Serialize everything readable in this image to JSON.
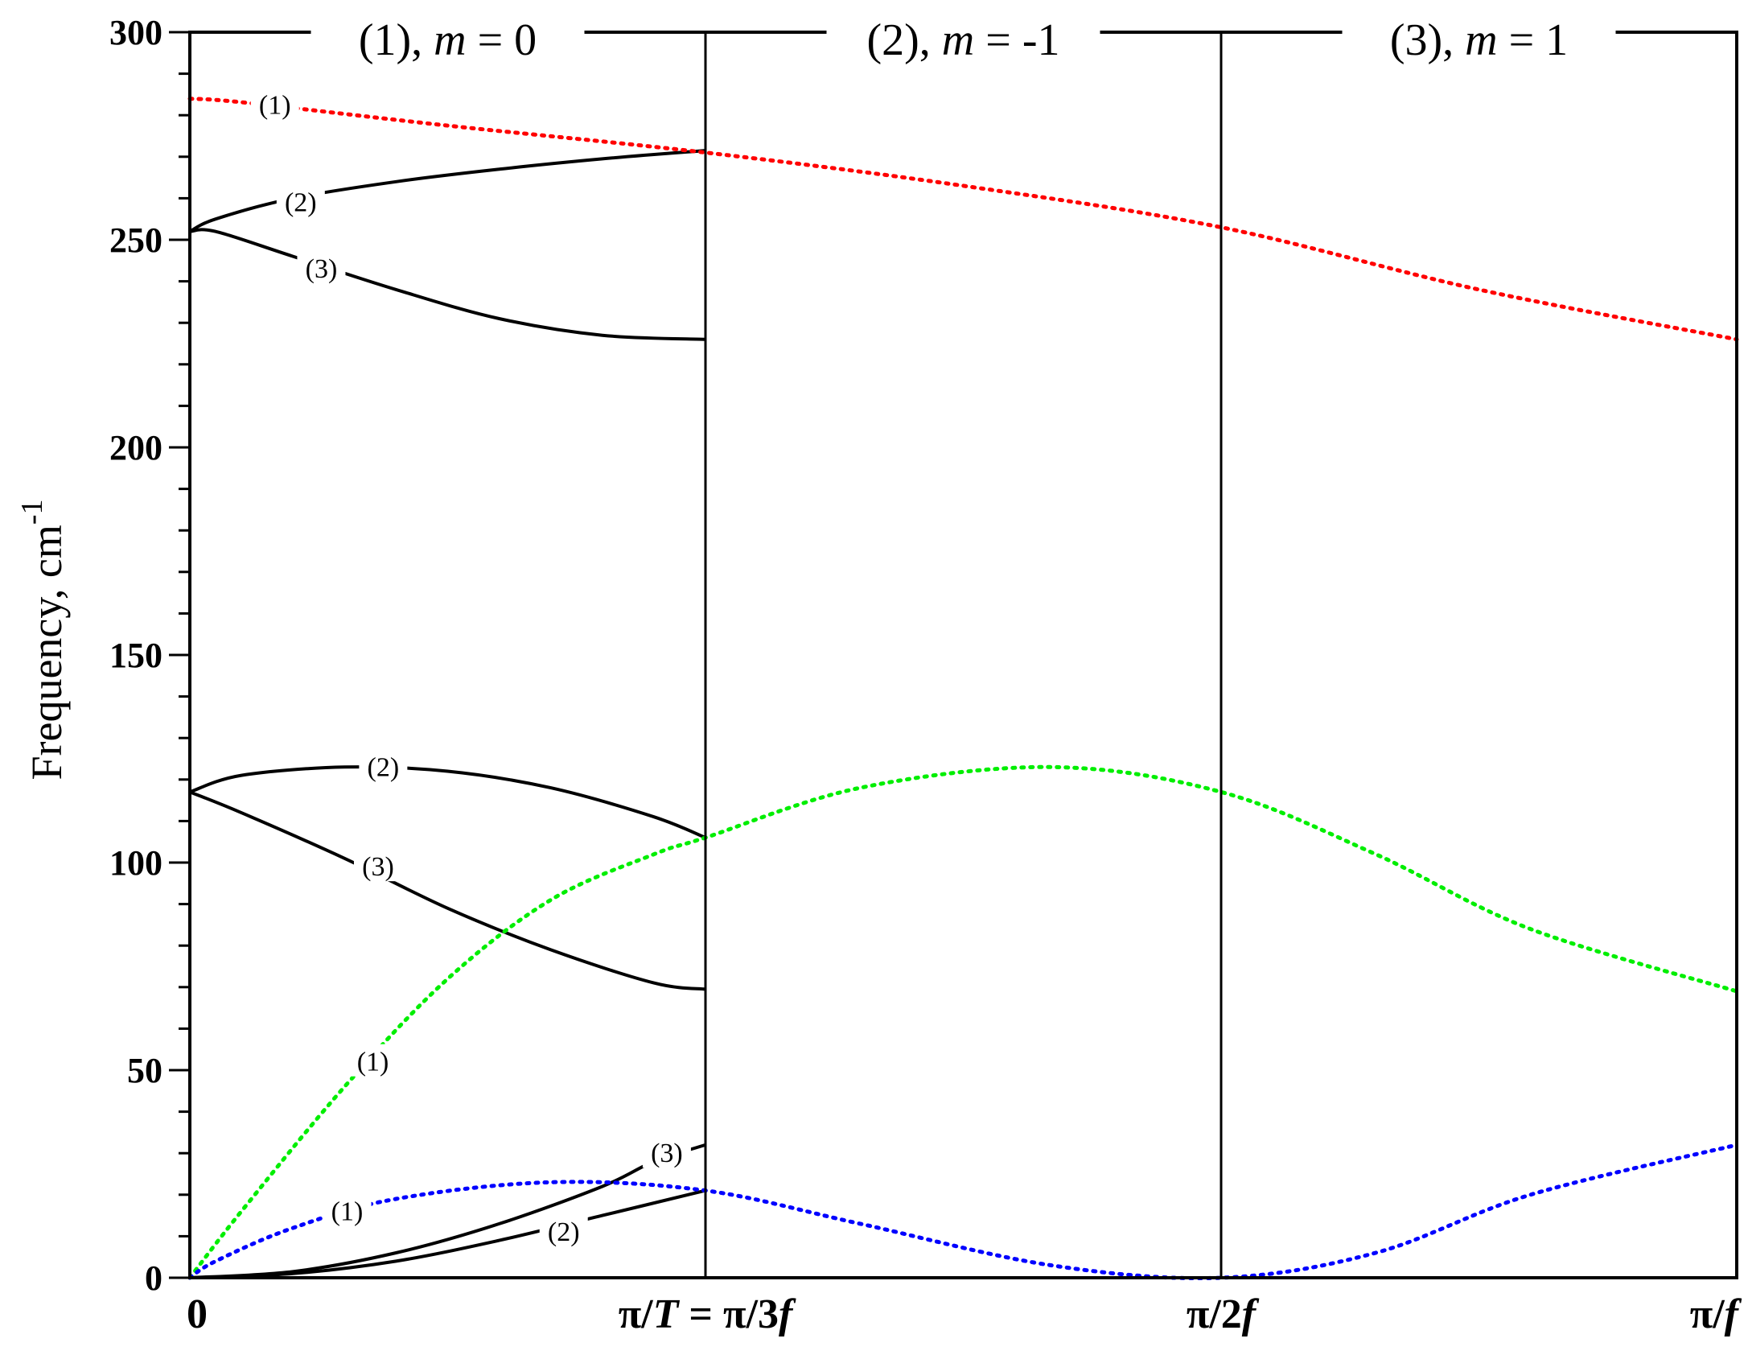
{
  "chart_data": {
    "type": "line",
    "ylabel": "Frequency, cm",
    "ylabel_sup": "-1",
    "ylim": [
      0,
      300
    ],
    "y_ticks": [
      "0",
      "50",
      "100",
      "150",
      "200",
      "250",
      "300"
    ],
    "x_ticks": [
      {
        "pos": 0,
        "label": "0"
      },
      {
        "pos": 1,
        "label": "π/T = π/3f"
      },
      {
        "pos": 2,
        "label": "π/2f"
      },
      {
        "pos": 3,
        "label": "π/f"
      }
    ],
    "section_labels": [
      "(1), m = 0",
      "(2), m = -1",
      "(3), m = 1"
    ],
    "grid": false,
    "colors": {
      "black": "#000000",
      "red": "#ff0000",
      "green": "#00ee00",
      "blue": "#0000ff"
    },
    "series": [
      {
        "color": "#ff0000",
        "style": "dotted",
        "x": [
          0,
          0.11,
          0.5,
          1.0,
          1.5,
          2.0,
          2.5,
          3.0
        ],
        "y": [
          284,
          283,
          277.5,
          271,
          263,
          253,
          238,
          226
        ]
      },
      {
        "color": "#00ee00",
        "style": "dotted",
        "x": [
          0,
          0.1,
          0.3,
          0.5,
          0.7,
          0.9,
          1.0,
          1.3,
          1.67,
          2.0,
          2.3,
          2.6,
          3.0
        ],
        "y": [
          0,
          16,
          46,
          72,
          91,
          102,
          106,
          118,
          123,
          117,
          102,
          84,
          69
        ]
      },
      {
        "color": "#0000ff",
        "style": "dotted",
        "x": [
          0,
          0.05,
          0.2,
          0.4,
          0.7,
          1.0,
          1.3,
          1.67,
          2.0,
          2.3,
          2.6,
          3.0
        ],
        "y": [
          0,
          4,
          12,
          19,
          23,
          21,
          13,
          3,
          0,
          6,
          20,
          32
        ]
      },
      {
        "color": "#000000",
        "style": "solid",
        "x": [
          0,
          0.05,
          0.2,
          0.4,
          0.6,
          0.8,
          1.0
        ],
        "y": [
          252,
          255,
          260,
          264,
          267,
          269.5,
          271.5
        ]
      },
      {
        "color": "#000000",
        "style": "solid",
        "x": [
          0,
          0.05,
          0.2,
          0.4,
          0.6,
          0.8,
          1.0
        ],
        "y": [
          252,
          252,
          246,
          238,
          231,
          227,
          226
        ]
      },
      {
        "color": "#000000",
        "style": "solid",
        "x": [
          0,
          0.1,
          0.3,
          0.5,
          0.7,
          0.9,
          1.0
        ],
        "y": [
          117,
          121,
          123,
          122,
          118,
          111,
          106
        ]
      },
      {
        "color": "#000000",
        "style": "solid",
        "x": [
          0,
          0.1,
          0.3,
          0.5,
          0.7,
          0.9,
          1.0
        ],
        "y": [
          117,
          112,
          101,
          89,
          79,
          71,
          69.5
        ]
      },
      {
        "color": "#000000",
        "style": "solid",
        "x": [
          0,
          0.2,
          0.4,
          0.6,
          0.8,
          0.9,
          1.0
        ],
        "y": [
          0,
          1.5,
          6,
          13,
          22,
          28,
          32
        ]
      },
      {
        "color": "#000000",
        "style": "solid",
        "x": [
          0,
          0.2,
          0.4,
          0.6,
          0.8,
          1.0
        ],
        "y": [
          0,
          1,
          4,
          9,
          15,
          21
        ]
      }
    ],
    "curve_labels": [
      {
        "text": "(1)",
        "x": 0.165,
        "y": 282.5
      },
      {
        "text": "(2)",
        "x": 0.215,
        "y": 259
      },
      {
        "text": "(3)",
        "x": 0.255,
        "y": 243
      },
      {
        "text": "(2)",
        "x": 0.375,
        "y": 123
      },
      {
        "text": "(3)",
        "x": 0.365,
        "y": 99
      },
      {
        "text": "(1)",
        "x": 0.355,
        "y": 52
      },
      {
        "text": "(3)",
        "x": 0.925,
        "y": 30
      },
      {
        "text": "(1)",
        "x": 0.305,
        "y": 16
      },
      {
        "text": "(2)",
        "x": 0.725,
        "y": 11
      }
    ]
  }
}
